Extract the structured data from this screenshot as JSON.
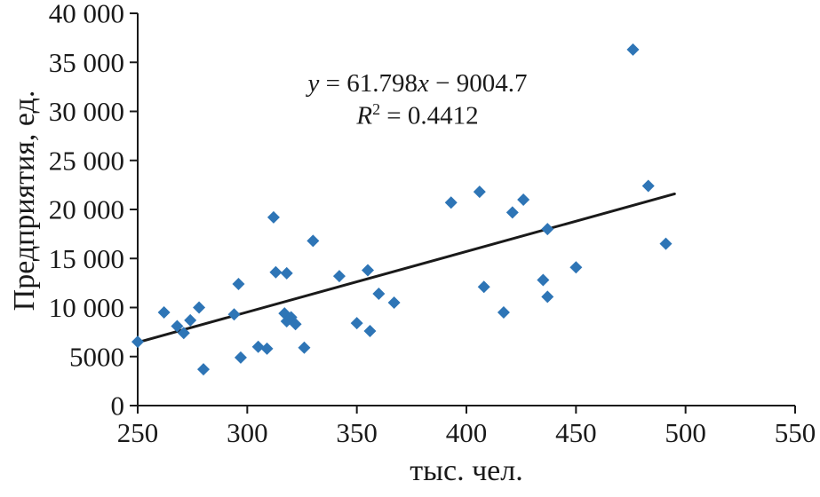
{
  "chart_data": {
    "type": "scatter",
    "title": "",
    "xlabel": "тыс. чел.",
    "ylabel": "Предприятия, ед.",
    "xlim": [
      250,
      550
    ],
    "ylim": [
      0,
      40000
    ],
    "grid": false,
    "legend": "none",
    "axis_color": "#1a1a1a",
    "point_color": "#2e75b6",
    "x_ticks": [
      250,
      300,
      350,
      400,
      450,
      500,
      550
    ],
    "x_tick_labels": [
      "250",
      "300",
      "350",
      "400",
      "450",
      "500",
      "550"
    ],
    "y_ticks": [
      0,
      5000,
      10000,
      15000,
      20000,
      25000,
      30000,
      35000,
      40000
    ],
    "y_tick_labels": [
      "0",
      "5000",
      "10 000",
      "15 000",
      "20 000",
      "25 000",
      "30 000",
      "35 000",
      "40 000"
    ],
    "points": [
      [
        250,
        6500
      ],
      [
        262,
        9500
      ],
      [
        268,
        8100
      ],
      [
        271,
        7400
      ],
      [
        274,
        8700
      ],
      [
        278,
        10000
      ],
      [
        280,
        3700
      ],
      [
        294,
        9300
      ],
      [
        296,
        12400
      ],
      [
        297,
        4900
      ],
      [
        305,
        6000
      ],
      [
        309,
        5800
      ],
      [
        312,
        19200
      ],
      [
        313,
        13600
      ],
      [
        318,
        13500
      ],
      [
        317,
        9400
      ],
      [
        318,
        8600
      ],
      [
        320,
        9000
      ],
      [
        322,
        8300
      ],
      [
        326,
        5900
      ],
      [
        330,
        16800
      ],
      [
        342,
        13200
      ],
      [
        350,
        8400
      ],
      [
        355,
        13800
      ],
      [
        356,
        7600
      ],
      [
        360,
        11400
      ],
      [
        367,
        10500
      ],
      [
        393,
        20700
      ],
      [
        406,
        21800
      ],
      [
        408,
        12100
      ],
      [
        417,
        9500
      ],
      [
        421,
        19700
      ],
      [
        426,
        21000
      ],
      [
        435,
        12800
      ],
      [
        437,
        11100
      ],
      [
        437,
        18000
      ],
      [
        450,
        14100
      ],
      [
        476,
        36300
      ],
      [
        483,
        22400
      ],
      [
        491,
        16500
      ]
    ],
    "trendline": {
      "slope": 61.798,
      "intercept": -9004.7,
      "x_start": 250,
      "x_end": 495,
      "color": "#1a1a1a"
    },
    "annotation": {
      "equation_full": "y = 61.798x − 9004.7",
      "r_squared_full": "R² = 0.4412",
      "var_y": "y",
      "eq_mid": " = 61.798",
      "var_x": "x",
      "eq_tail": " − 9004.7",
      "r_var": "R",
      "r_exp": "2",
      "r_rest": " = 0.4412"
    }
  }
}
